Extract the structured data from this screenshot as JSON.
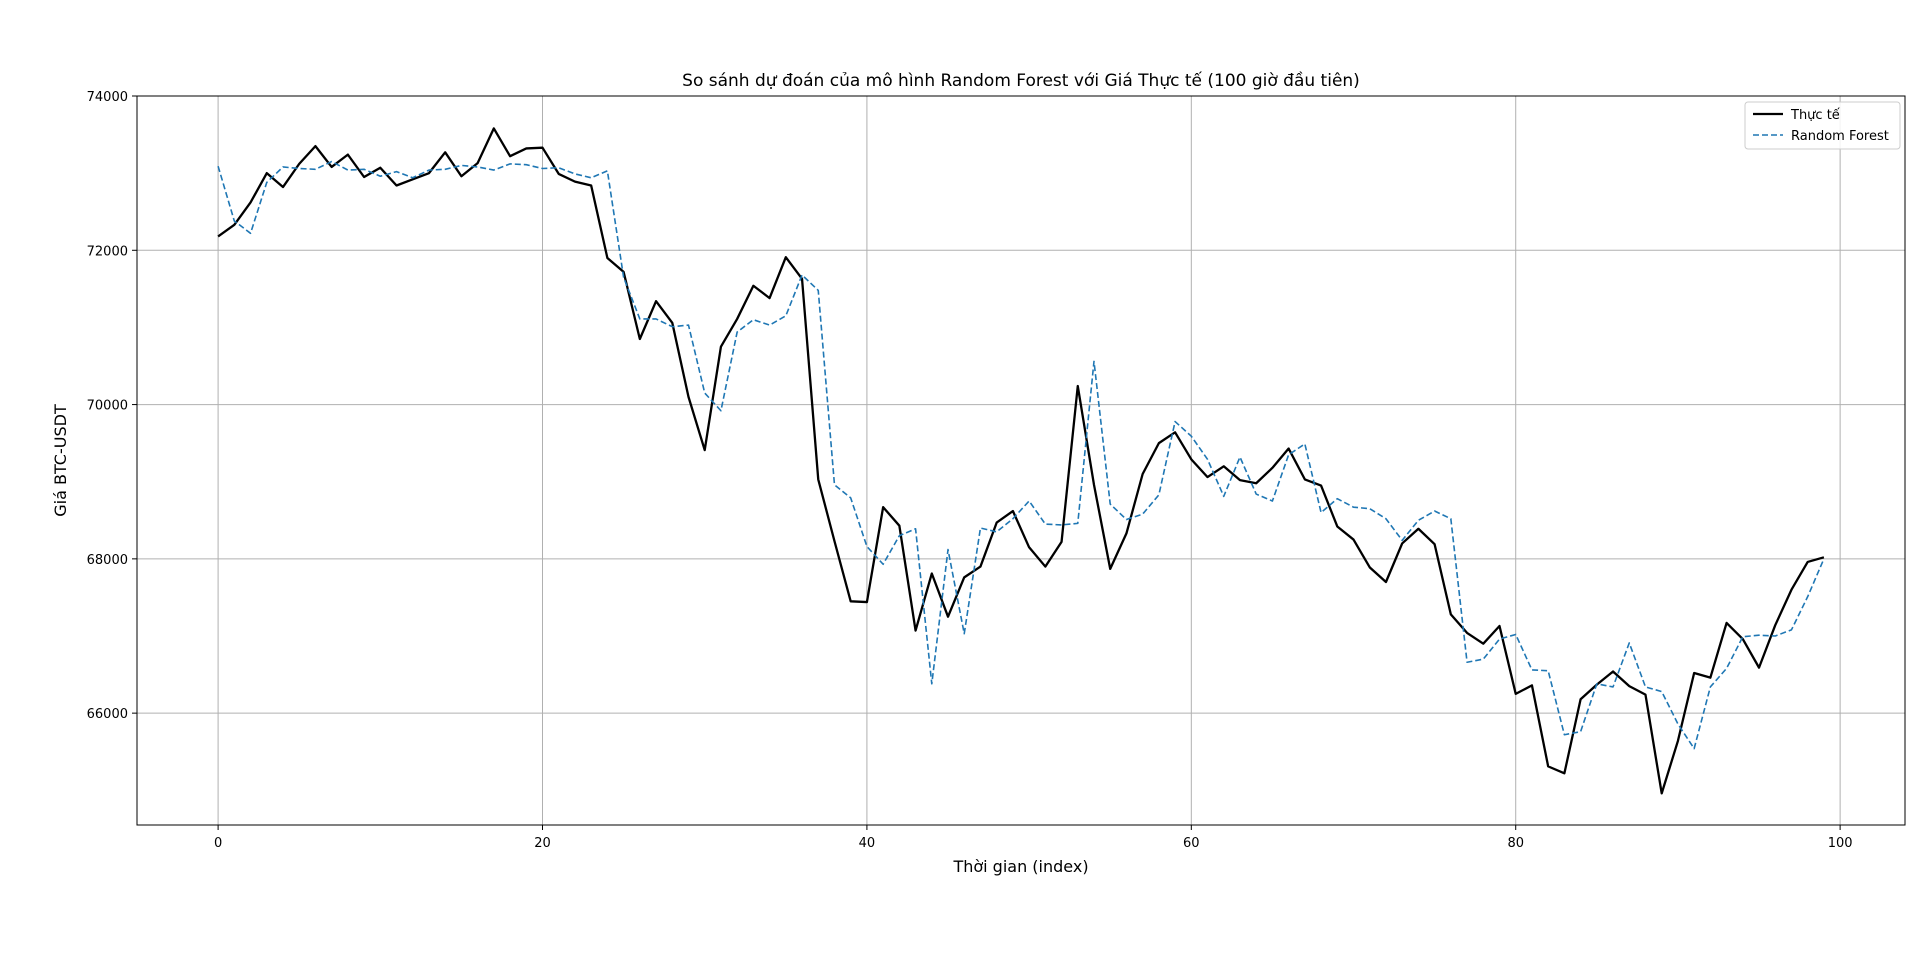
{
  "chart_data": {
    "type": "line",
    "title": "So sánh dự đoán của mô hình Random Forest với Giá Thực tế (100 giờ đầu tiên)",
    "xlabel": "Thời gian (index)",
    "ylabel": "Giá BTC-USDT",
    "xlim": [
      -5,
      104
    ],
    "ylim": [
      64550,
      74000
    ],
    "x_ticks": [
      0,
      20,
      40,
      60,
      80,
      100
    ],
    "y_ticks": [
      66000,
      68000,
      70000,
      72000,
      74000
    ],
    "grid": true,
    "legend_position": "top-right",
    "series": [
      {
        "name": "Thực tế",
        "color": "#000000",
        "style": "solid",
        "values": [
          72180,
          72330,
          72620,
          73000,
          72820,
          73120,
          73350,
          73080,
          73240,
          72950,
          73070,
          72840,
          72920,
          73000,
          73270,
          72960,
          73130,
          73580,
          73220,
          73320,
          73330,
          72990,
          72890,
          72840,
          71900,
          71720,
          70850,
          71340,
          71060,
          70100,
          69410,
          70750,
          71110,
          71540,
          71380,
          71910,
          71630,
          69030,
          68230,
          67450,
          67440,
          68670,
          68430,
          67070,
          67810,
          67250,
          67760,
          67900,
          68470,
          68620,
          68150,
          67900,
          68220,
          70240,
          68960,
          67870,
          68330,
          69100,
          69500,
          69640,
          69290,
          69060,
          69200,
          69020,
          68980,
          69180,
          69430,
          69030,
          68950,
          68420,
          68250,
          67890,
          67700,
          68200,
          68390,
          68190,
          67280,
          67040,
          66900,
          67130,
          66250,
          66360,
          65310,
          65220,
          66180,
          66370,
          66540,
          66350,
          66240,
          64960,
          65640,
          66520,
          66460,
          67170,
          66960,
          66590,
          67140,
          67600,
          67960,
          68020
        ]
      },
      {
        "name": "Random Forest",
        "color": "#1f77b4",
        "style": "dashed",
        "values": [
          73090,
          72380,
          72220,
          72880,
          73080,
          73060,
          73050,
          73150,
          73040,
          73050,
          72960,
          73020,
          72940,
          73040,
          73050,
          73100,
          73080,
          73040,
          73120,
          73110,
          73060,
          73070,
          72990,
          72940,
          73030,
          71650,
          71110,
          71110,
          71010,
          71030,
          70150,
          69920,
          70940,
          71100,
          71030,
          71150,
          71680,
          71480,
          68960,
          68790,
          68160,
          67930,
          68300,
          68390,
          66380,
          68120,
          67030,
          68400,
          68350,
          68520,
          68750,
          68450,
          68440,
          68460,
          70560,
          68710,
          68510,
          68580,
          68830,
          69780,
          69590,
          69290,
          68810,
          69320,
          68840,
          68750,
          69350,
          69490,
          68600,
          68780,
          68670,
          68650,
          68520,
          68240,
          68500,
          68620,
          68520,
          66660,
          66700,
          66960,
          67020,
          66560,
          66550,
          65720,
          65760,
          66380,
          66340,
          66910,
          66340,
          66280,
          65860,
          65540,
          66340,
          66580,
          66990,
          67010,
          67000,
          67080,
          67510,
          68000
        ]
      }
    ]
  }
}
